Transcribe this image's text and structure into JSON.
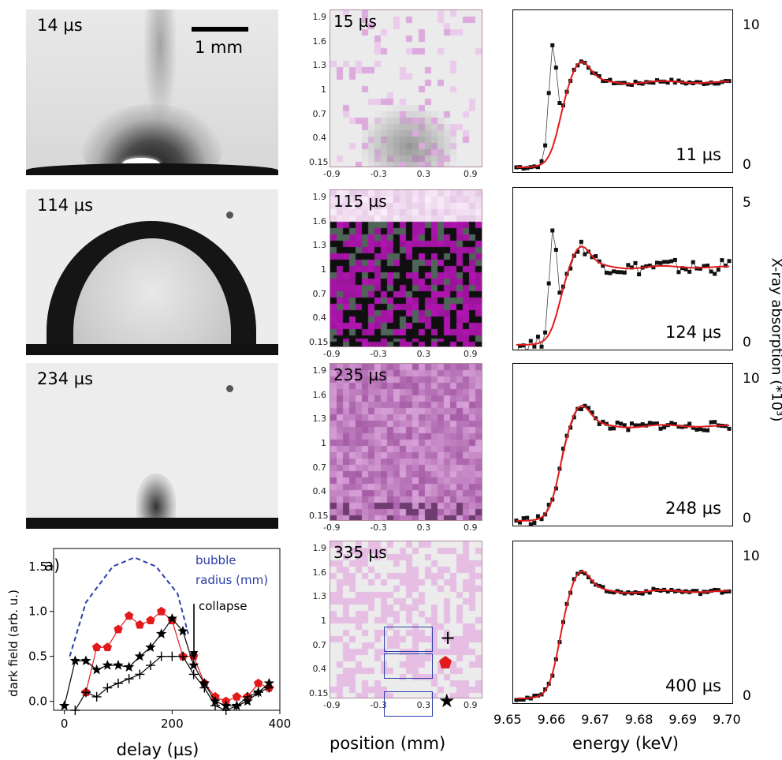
{
  "photos": [
    {
      "label": "14 µs",
      "scalebar": "1 mm"
    },
    {
      "label": "114 µs"
    },
    {
      "label": "234 µs"
    }
  ],
  "maps": [
    {
      "label": "15 µs",
      "tint": "#ddd9dc"
    },
    {
      "label": "115 µs",
      "tint": "#6a1a6a"
    },
    {
      "label": "235 µs",
      "tint": "#b070b0"
    },
    {
      "label": "335 µs",
      "tint": "#e8d0e6"
    }
  ],
  "map_yticks": [
    "1.9",
    "1.6",
    "1.3",
    "1",
    "0.7",
    "0.4",
    "0.15"
  ],
  "map_xticks": [
    "-0.9",
    "-0.3",
    "0.3",
    "0.9"
  ],
  "map_xlabel": "position (mm)",
  "map_marker_symbols": [
    "+",
    "★"
  ],
  "xas_panels": [
    {
      "label": "11 µs",
      "ytop": "10",
      "ybot": "0"
    },
    {
      "label": "124 µs",
      "ytop": "5",
      "ybot": "0"
    },
    {
      "label": "248 µs",
      "ytop": "10",
      "ybot": "0"
    },
    {
      "label": "400 µs",
      "ytop": "10",
      "ybot": "0"
    }
  ],
  "xas_ylabel": "X-ray absorption (*10³)",
  "xas_xlabel": "energy (keV)",
  "xas_xticks": [
    "9.65",
    "9.66",
    "9.67",
    "9.68",
    "9.69",
    "9.70"
  ],
  "colors": {
    "fit": "#e31a1c",
    "data": "#111111",
    "pentagon": "#e31a1c",
    "radius": "#2c3ea8",
    "box": "#2c3ea8"
  },
  "chart_data": {
    "type": "line",
    "panel_label": "a)",
    "xlabel": "delay (µs)",
    "ylabel": "dark field (arb. u.)",
    "xlim": [
      -20,
      400
    ],
    "ylim": [
      -0.1,
      1.7
    ],
    "xticks": [
      "0",
      "200",
      "400"
    ],
    "yticks": [
      "0.0",
      "0.5",
      "1.0",
      "1.5"
    ],
    "annotations": {
      "radius": "bubble radius (mm)",
      "collapse": "collapse"
    },
    "series": [
      {
        "name": "pentagon",
        "x": [
          40,
          60,
          80,
          100,
          120,
          140,
          160,
          180,
          200,
          220,
          240,
          260,
          280,
          300,
          320,
          340,
          360,
          380
        ],
        "y": [
          0.1,
          0.6,
          0.6,
          0.8,
          0.95,
          0.85,
          0.9,
          1.0,
          0.9,
          0.5,
          0.5,
          0.2,
          0.05,
          0.0,
          0.05,
          0.05,
          0.2,
          0.15
        ]
      },
      {
        "name": "star",
        "x": [
          0,
          20,
          40,
          60,
          80,
          100,
          120,
          140,
          160,
          180,
          200,
          220,
          240,
          260,
          280,
          300,
          320,
          340,
          360,
          380
        ],
        "y": [
          -0.05,
          0.45,
          0.45,
          0.35,
          0.4,
          0.4,
          0.38,
          0.5,
          0.6,
          0.75,
          0.92,
          0.78,
          0.4,
          0.2,
          0.0,
          -0.05,
          -0.05,
          0.0,
          0.1,
          0.2
        ]
      },
      {
        "name": "cross",
        "x": [
          20,
          40,
          60,
          80,
          100,
          120,
          140,
          160,
          180,
          200,
          220,
          240,
          260,
          280,
          300,
          320,
          340,
          360,
          380
        ],
        "y": [
          -0.1,
          0.1,
          0.05,
          0.15,
          0.2,
          0.25,
          0.3,
          0.4,
          0.5,
          0.5,
          0.5,
          0.3,
          0.15,
          -0.05,
          -0.1,
          -0.05,
          0.05,
          0.1,
          0.15
        ]
      },
      {
        "name": "radius",
        "x": [
          10,
          40,
          90,
          130,
          170,
          210,
          230
        ],
        "y": [
          0.5,
          1.1,
          1.5,
          1.6,
          1.5,
          1.2,
          0.75
        ]
      }
    ]
  }
}
